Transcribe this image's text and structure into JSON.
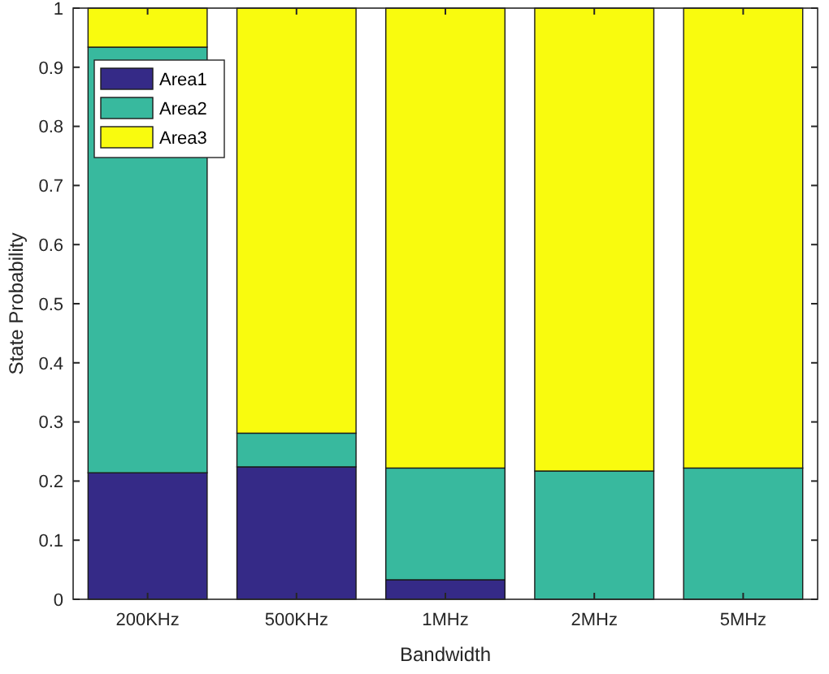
{
  "chart_data": {
    "type": "bar",
    "stacked": true,
    "xlabel": "Bandwidth",
    "ylabel": "State Probability",
    "categories": [
      "200KHz",
      "500KHz",
      "1MHz",
      "2MHz",
      "5MHz"
    ],
    "series": [
      {
        "name": "Area1",
        "color": "#352a87",
        "values": [
          0.214,
          0.224,
          0.033,
          null,
          null
        ]
      },
      {
        "name": "Area2",
        "color": "#38b99e",
        "values": [
          0.72,
          0.057,
          0.189,
          0.217,
          0.222
        ]
      },
      {
        "name": "Area3",
        "color": "#f9fb0e",
        "values": [
          0.066,
          0.719,
          0.778,
          0.783,
          0.778
        ]
      }
    ],
    "ylim": [
      0,
      1
    ],
    "yticks": [
      0,
      0.1,
      0.2,
      0.3,
      0.4,
      0.5,
      0.6,
      0.7,
      0.8,
      0.9,
      1
    ],
    "grid": false,
    "legend": "top left"
  }
}
